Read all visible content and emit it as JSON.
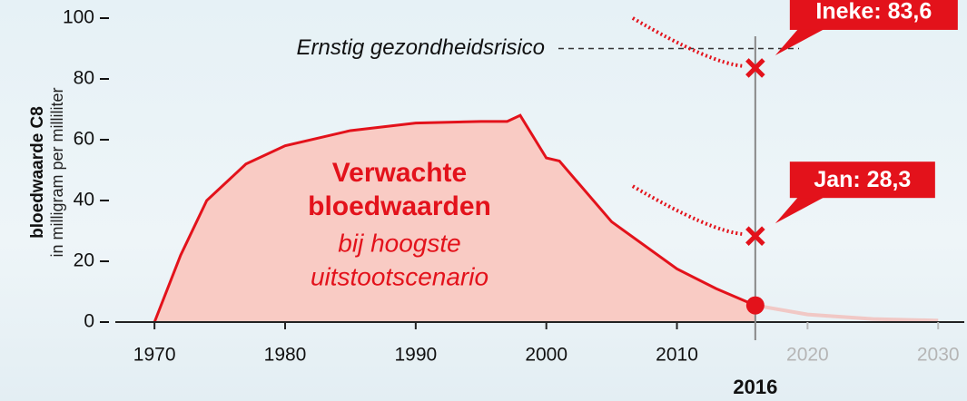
{
  "chart_data": {
    "type": "area",
    "y_label": "bloedwaarde C8",
    "y_sublabel": "in milligram per milliliter",
    "x": [
      1970,
      1972,
      1974,
      1977,
      1980,
      1985,
      1990,
      1995,
      1997,
      1998,
      2000,
      2001,
      2005,
      2010,
      2013,
      2016,
      2020,
      2025,
      2030
    ],
    "series": [
      {
        "color": "#e3121b",
        "values": [
          0,
          22,
          40,
          52,
          58,
          63,
          65.5,
          66,
          66,
          68,
          54,
          53,
          33,
          17.5,
          11,
          5.5,
          null,
          null,
          null
        ]
      },
      {
        "color": "#f4b7b0",
        "values": [
          null,
          null,
          null,
          null,
          null,
          null,
          null,
          null,
          null,
          null,
          null,
          null,
          null,
          null,
          null,
          5.5,
          2.5,
          1,
          0.5
        ]
      }
    ],
    "fill": "#f9cbc4",
    "xlim": [
      1967,
      2032
    ],
    "ylim": [
      0,
      100
    ],
    "xticks": [
      1970,
      1980,
      1990,
      2000,
      2010,
      2020,
      2030
    ],
    "yticks": [
      0,
      20,
      40,
      60,
      80,
      100
    ],
    "highlight_x": 2016,
    "threshold": {
      "label": "Ernstig gezondheidsrisico",
      "value": 90
    },
    "points": [
      {
        "label": "Ineke: 83,6",
        "x": 2016,
        "value": 83.6
      },
      {
        "label": "Jan: 28,3",
        "x": 2016,
        "value": 28.3
      }
    ],
    "annotation_title": [
      "Verwachte",
      "bloedwaarden"
    ],
    "annotation_subtitle": [
      "bij hoogste",
      "uitstootscenario"
    ]
  }
}
